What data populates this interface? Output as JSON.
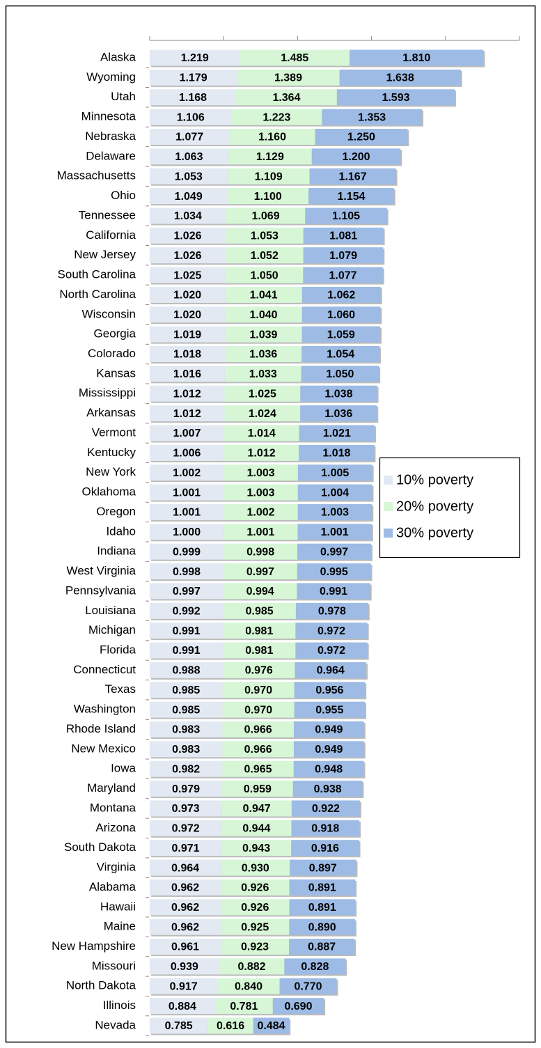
{
  "chart_data": {
    "type": "stacked-bar-horizontal",
    "categories": [
      "Alaska",
      "Wyoming",
      "Utah",
      "Minnesota",
      "Nebraska",
      "Delaware",
      "Massachusetts",
      "Ohio",
      "Tennessee",
      "California",
      "New Jersey",
      "South Carolina",
      "North Carolina",
      "Wisconsin",
      "Georgia",
      "Colorado",
      "Kansas",
      "Mississippi",
      "Arkansas",
      "Vermont",
      "Kentucky",
      "New York",
      "Oklahoma",
      "Oregon",
      "Idaho",
      "Indiana",
      "West Virginia",
      "Pennsylvania",
      "Louisiana",
      "Michigan",
      "Florida",
      "Connecticut",
      "Texas",
      "Washington",
      "Rhode Island",
      "New Mexico",
      "Iowa",
      "Maryland",
      "Montana",
      "Arizona",
      "South Dakota",
      "Virginia",
      "Alabama",
      "Hawaii",
      "Maine",
      "New Hampshire",
      "Missouri",
      "North Dakota",
      "Illinois",
      "Nevada"
    ],
    "series": [
      {
        "name": "10% poverty",
        "color": "#e3e9f3",
        "values": [
          1.219,
          1.179,
          1.168,
          1.106,
          1.077,
          1.063,
          1.053,
          1.049,
          1.034,
          1.026,
          1.026,
          1.025,
          1.02,
          1.02,
          1.019,
          1.018,
          1.016,
          1.012,
          1.012,
          1.007,
          1.006,
          1.002,
          1.001,
          1.001,
          1.0,
          0.999,
          0.998,
          0.997,
          0.992,
          0.991,
          0.991,
          0.988,
          0.985,
          0.985,
          0.983,
          0.983,
          0.982,
          0.979,
          0.973,
          0.972,
          0.971,
          0.964,
          0.962,
          0.962,
          0.962,
          0.961,
          0.939,
          0.917,
          0.884,
          0.785
        ],
        "value_labels": [
          "1.219",
          "1.179",
          "1.168",
          "1.106",
          "1.077",
          "1.063",
          "1.053",
          "1.049",
          "1.034",
          "1.026",
          "1.026",
          "1.025",
          "1.020",
          "1.020",
          "1.019",
          "1.018",
          "1.016",
          "1.012",
          "1.012",
          "1.007",
          "1.006",
          "1.002",
          "1.001",
          "1.001",
          "1.000",
          "0.999",
          "0.998",
          "0.997",
          "0.992",
          "0.991",
          "0.991",
          "0.988",
          "0.985",
          "0.985",
          "0.983",
          "0.983",
          "0.982",
          "0.979",
          "0.973",
          "0.972",
          "0.971",
          "0.964",
          "0.962",
          "0.962",
          "0.962",
          "0.961",
          "0.939",
          "0.917",
          "0.884",
          "0.785"
        ]
      },
      {
        "name": "20% poverty",
        "color": "#d6f6d6",
        "values": [
          1.485,
          1.389,
          1.364,
          1.223,
          1.16,
          1.129,
          1.109,
          1.1,
          1.069,
          1.053,
          1.052,
          1.05,
          1.041,
          1.04,
          1.039,
          1.036,
          1.033,
          1.025,
          1.024,
          1.014,
          1.012,
          1.003,
          1.003,
          1.002,
          1.001,
          0.998,
          0.997,
          0.994,
          0.985,
          0.981,
          0.981,
          0.976,
          0.97,
          0.97,
          0.966,
          0.966,
          0.965,
          0.959,
          0.947,
          0.944,
          0.943,
          0.93,
          0.926,
          0.926,
          0.925,
          0.923,
          0.882,
          0.84,
          0.781,
          0.616
        ],
        "value_labels": [
          "1.485",
          "1.389",
          "1.364",
          "1.223",
          "1.160",
          "1.129",
          "1.109",
          "1.100",
          "1.069",
          "1.053",
          "1.052",
          "1.050",
          "1.041",
          "1.040",
          "1.039",
          "1.036",
          "1.033",
          "1.025",
          "1.024",
          "1.014",
          "1.012",
          "1.003",
          "1.003",
          "1.002",
          "1.001",
          "0.998",
          "0.997",
          "0.994",
          "0.985",
          "0.981",
          "0.981",
          "0.976",
          "0.970",
          "0.970",
          "0.966",
          "0.966",
          "0.965",
          "0.959",
          "0.947",
          "0.944",
          "0.943",
          "0.930",
          "0.926",
          "0.926",
          "0.925",
          "0.923",
          "0.882",
          "0.840",
          "0.781",
          "0.616"
        ]
      },
      {
        "name": "30% poverty",
        "color": "#9dbbe4",
        "values": [
          1.81,
          1.638,
          1.593,
          1.353,
          1.25,
          1.2,
          1.167,
          1.154,
          1.105,
          1.081,
          1.079,
          1.077,
          1.062,
          1.06,
          1.059,
          1.054,
          1.05,
          1.038,
          1.036,
          1.021,
          1.018,
          1.005,
          1.004,
          1.003,
          1.001,
          0.997,
          0.995,
          0.991,
          0.978,
          0.972,
          0.972,
          0.964,
          0.956,
          0.955,
          0.949,
          0.949,
          0.948,
          0.938,
          0.922,
          0.918,
          0.916,
          0.897,
          0.891,
          0.891,
          0.89,
          0.887,
          0.828,
          0.77,
          0.69,
          0.484
        ],
        "value_labels": [
          "1.810",
          "1.638",
          "1.593",
          "1.353",
          "1.250",
          "1.200",
          "1.167",
          "1.154",
          "1.105",
          "1.081",
          "1.079",
          "1.077",
          "1.062",
          "1.060",
          "1.059",
          "1.054",
          "1.050",
          "1.038",
          "1.036",
          "1.021",
          "1.018",
          "1.005",
          "1.004",
          "1.003",
          "1.001",
          "0.997",
          "0.995",
          "0.991",
          "0.978",
          "0.972",
          "0.972",
          "0.964",
          "0.956",
          "0.955",
          "0.949",
          "0.949",
          "0.948",
          "0.938",
          "0.922",
          "0.918",
          "0.916",
          "0.897",
          "0.891",
          "0.891",
          "0.890",
          "0.887",
          "0.828",
          "0.770",
          "0.690",
          "0.484"
        ]
      }
    ],
    "xlim": [
      0,
      5
    ],
    "xticks": [
      0,
      1,
      2,
      3,
      4,
      5
    ]
  }
}
